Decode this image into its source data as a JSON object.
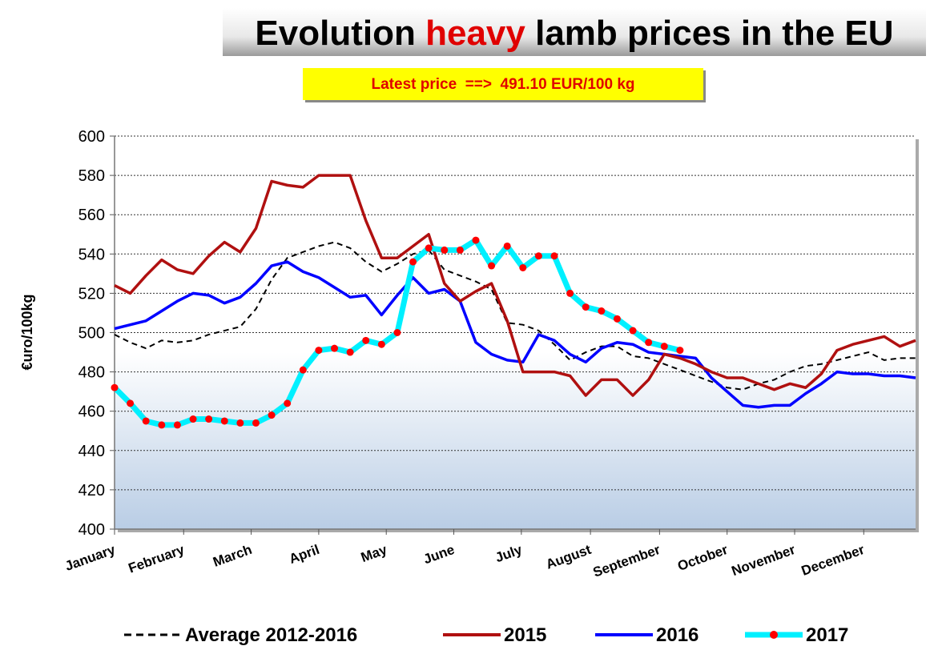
{
  "chart_data": {
    "type": "line",
    "title_parts": [
      "Evolution",
      "heavy",
      "lamb prices in the EU"
    ],
    "subtitle": "Latest price  ==>  491.10 EUR/100 kg",
    "y_label": "€uro/100kg",
    "x": [
      1,
      2,
      3,
      4,
      5,
      6,
      7,
      8,
      9,
      10,
      11,
      12,
      13,
      14,
      15,
      16,
      17,
      18,
      19,
      20,
      21,
      22,
      23,
      24,
      25,
      26,
      27,
      28,
      29,
      30,
      31,
      32,
      33,
      34,
      35,
      36,
      37,
      38,
      39,
      40,
      41,
      42,
      43,
      44,
      45,
      46,
      47,
      48,
      49,
      50,
      51,
      52
    ],
    "xlim": [
      1,
      52
    ],
    "xticks": [
      {
        "value": 1,
        "label": "January"
      },
      {
        "value": 5.4,
        "label": "February"
      },
      {
        "value": 9.7,
        "label": "March"
      },
      {
        "value": 14,
        "label": "April"
      },
      {
        "value": 18.3,
        "label": "May"
      },
      {
        "value": 22.6,
        "label": "June"
      },
      {
        "value": 26.9,
        "label": "July"
      },
      {
        "value": 31.3,
        "label": "August"
      },
      {
        "value": 35.7,
        "label": "September"
      },
      {
        "value": 40,
        "label": "October"
      },
      {
        "value": 44.3,
        "label": "November"
      },
      {
        "value": 48.7,
        "label": "December"
      }
    ],
    "ylim": [
      400,
      600
    ],
    "yticks": [
      400,
      420,
      440,
      460,
      480,
      500,
      520,
      540,
      560,
      580,
      600
    ],
    "grid": true,
    "legend": "bottom",
    "series": [
      {
        "name": "Average 2012-2016",
        "color": "#000000",
        "line_style": "dashed",
        "values": [
          499,
          495,
          492,
          496,
          495,
          496,
          499,
          501,
          503,
          512,
          527,
          538,
          541,
          544,
          546,
          543,
          536,
          531,
          535,
          540,
          542,
          532,
          529,
          526,
          522,
          505,
          504,
          501,
          494,
          486,
          490,
          493,
          493,
          488,
          487,
          484,
          481,
          478,
          475,
          472,
          471,
          474,
          476,
          480,
          483,
          484,
          486,
          488,
          490,
          486,
          487,
          487
        ]
      },
      {
        "name": "2015",
        "color": "#b01010",
        "line_style": "solid",
        "values": [
          524,
          520,
          529,
          537,
          532,
          530,
          539,
          546,
          541,
          553,
          577,
          575,
          574,
          580,
          580,
          580,
          557,
          538,
          538,
          544,
          550,
          525,
          516,
          521,
          525,
          506,
          480,
          480,
          480,
          478,
          468,
          476,
          476,
          468,
          476,
          489,
          487,
          484,
          480,
          477,
          477,
          474,
          471,
          474,
          472,
          479,
          491,
          494,
          496,
          498,
          493,
          496
        ]
      },
      {
        "name": "2016",
        "color": "#0000ff",
        "line_style": "solid",
        "values": [
          502,
          504,
          506,
          511,
          516,
          520,
          519,
          515,
          518,
          525,
          534,
          536,
          531,
          528,
          523,
          518,
          519,
          509,
          519,
          528,
          520,
          522,
          516,
          495,
          489,
          486,
          485,
          499,
          496,
          489,
          485,
          492,
          495,
          494,
          490,
          489,
          488,
          487,
          477,
          470,
          463,
          462,
          463,
          463,
          469,
          474,
          480,
          479,
          479,
          478,
          478,
          477
        ]
      },
      {
        "name": "2017",
        "color": "#00f0ff",
        "line_style": "solid",
        "marker_color": "#ff0000",
        "values": [
          472,
          464,
          455,
          453,
          453,
          456,
          456,
          455,
          454,
          454,
          458,
          464,
          481,
          491,
          492,
          490,
          496,
          494,
          500,
          536,
          543,
          542,
          542,
          547,
          534,
          544,
          533,
          539,
          539,
          520,
          513,
          511,
          507,
          501,
          495,
          493,
          491,
          null,
          null,
          null,
          null,
          null,
          null,
          null,
          null,
          null,
          null,
          null,
          null,
          null,
          null,
          null
        ]
      }
    ]
  }
}
